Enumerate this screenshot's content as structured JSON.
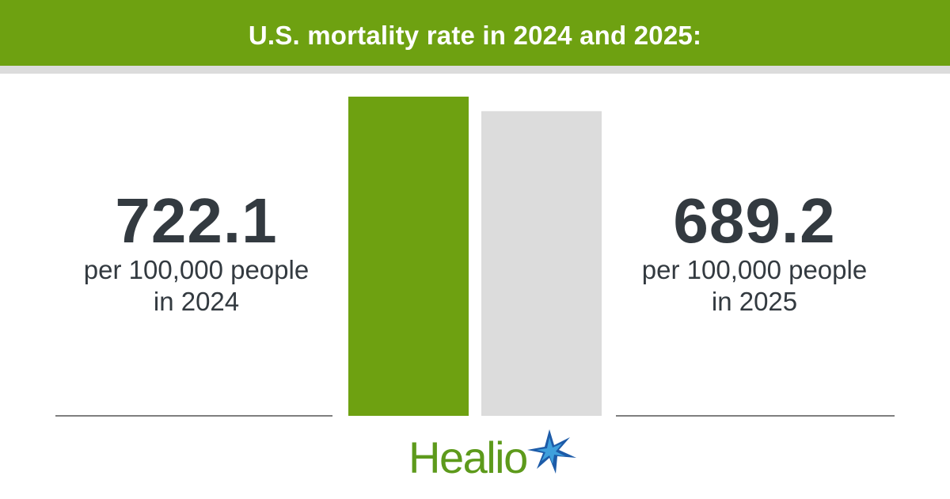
{
  "header": {
    "title": "U.S. mortality rate in 2024 and 2025:"
  },
  "stats": [
    {
      "value": "722.1",
      "unit": "per 100,000 people",
      "year_label": "in 2024"
    },
    {
      "value": "689.2",
      "unit": "per 100,000 people",
      "year_label": "in 2025"
    }
  ],
  "chart_data": {
    "type": "bar",
    "categories": [
      "2024",
      "2025"
    ],
    "values": [
      722.1,
      689.2
    ],
    "colors": [
      "#6ea111",
      "#dcdcdc"
    ],
    "title": "U.S. mortality rate in 2024 and 2025:",
    "xlabel": "",
    "ylabel": ""
  },
  "brand": {
    "name": "Healio",
    "logo_color": "#5d9a1b",
    "star_colors": [
      "#1d5ba8",
      "#3fa0dc"
    ]
  }
}
